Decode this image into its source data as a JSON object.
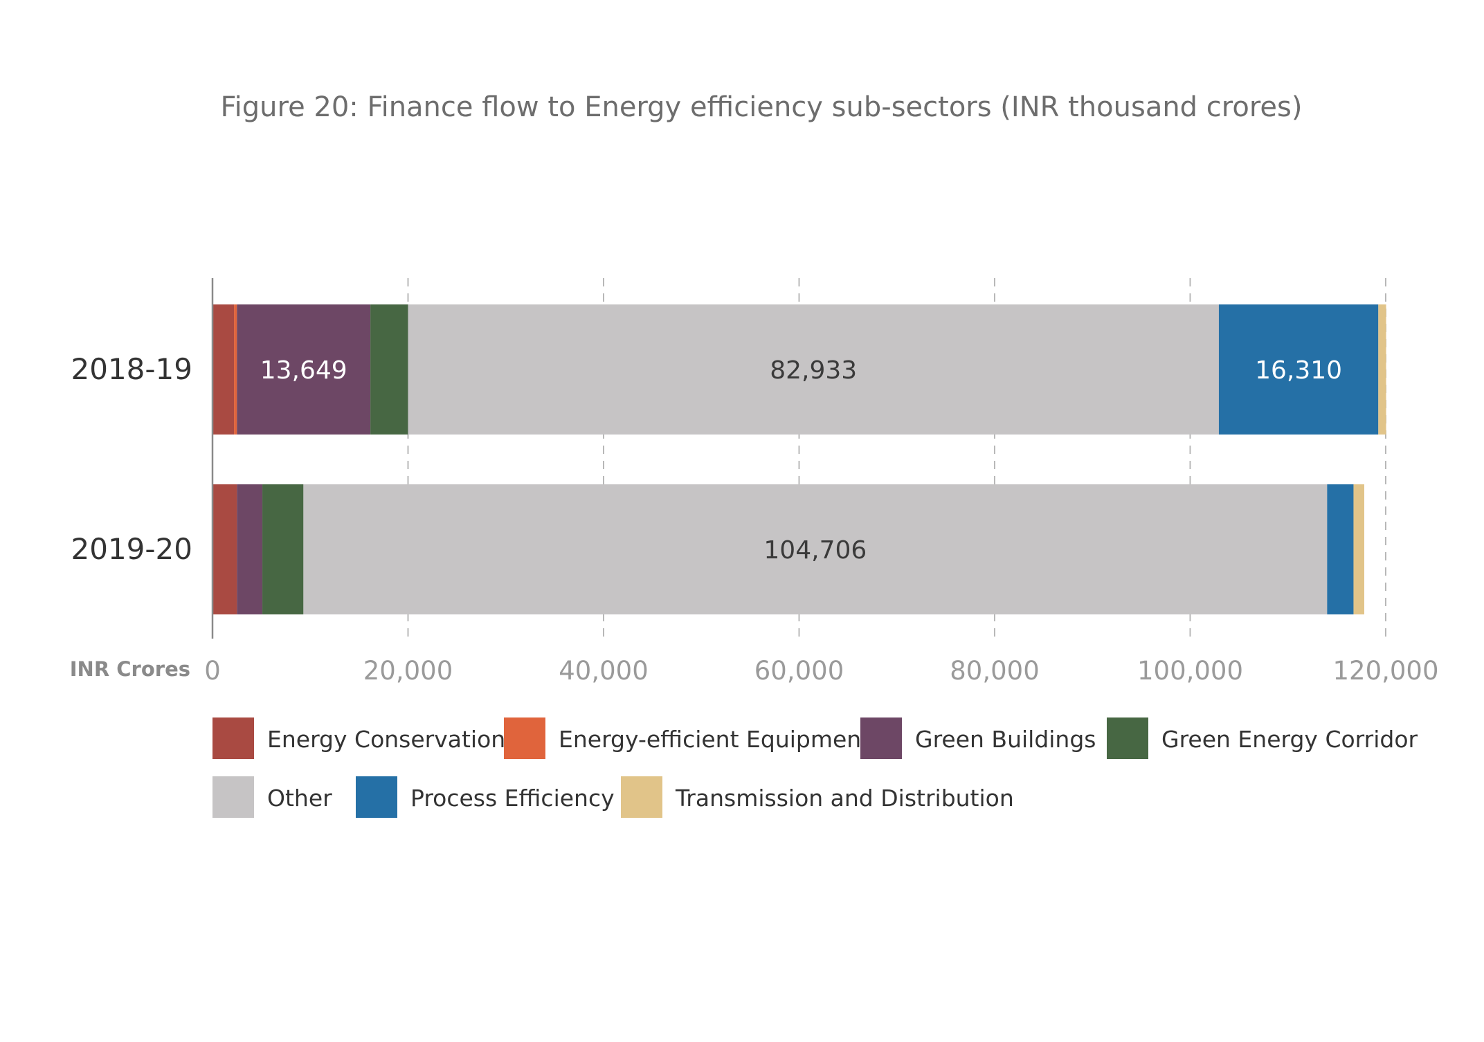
{
  "chart_data": {
    "type": "bar",
    "orientation": "horizontal",
    "stacked": true,
    "title": "Figure 20: Finance flow to Energy efficiency sub-sectors (INR thousand crores)",
    "xlabel": "INR Crores",
    "ylabel": "",
    "xlim": [
      0,
      120000
    ],
    "x_ticks": [
      "0",
      "20,000",
      "40,000",
      "60,000",
      "80,000",
      "100,000",
      "120,000"
    ],
    "grid": "vertical dashed",
    "legend_position": "bottom",
    "categories": [
      "2018-19",
      "2019-20"
    ],
    "series": [
      {
        "name": "Energy Conservation",
        "color": "#a94a42",
        "values": [
          2200,
          2500
        ]
      },
      {
        "name": "Energy-efficient Equipment",
        "color": "#e0643c",
        "values": [
          300,
          0
        ]
      },
      {
        "name": "Green Buildings",
        "color": "#6d4765",
        "values": [
          13649,
          2600
        ]
      },
      {
        "name": "Green Energy Corridor",
        "color": "#476743",
        "values": [
          3850,
          4200
        ]
      },
      {
        "name": "Other",
        "color": "#c6c4c5",
        "values": [
          82933,
          104706
        ]
      },
      {
        "name": "Process Efficiency",
        "color": "#2570a6",
        "values": [
          16310,
          2700
        ]
      },
      {
        "name": "Transmission and Distribution",
        "color": "#e1c489",
        "values": [
          800,
          1100
        ]
      }
    ],
    "data_labels": [
      {
        "category": "2018-19",
        "series": "Green Buildings",
        "text": "13,649",
        "color": "#ffffff"
      },
      {
        "category": "2018-19",
        "series": "Other",
        "text": "82,933",
        "color": "#3a3a3a"
      },
      {
        "category": "2018-19",
        "series": "Process Efficiency",
        "text": "16,310",
        "color": "#ffffff"
      },
      {
        "category": "2019-20",
        "series": "Other",
        "text": "104,706",
        "color": "#3a3a3a"
      }
    ]
  }
}
